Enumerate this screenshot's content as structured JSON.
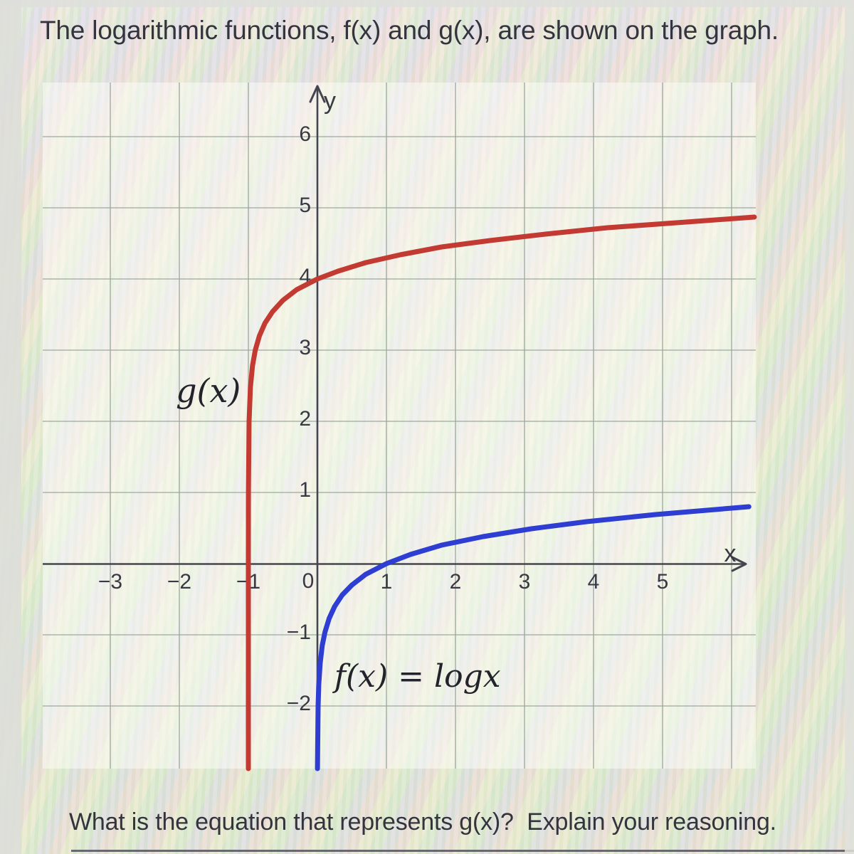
{
  "intro_text": "The logarithmic functions, f(x) and g(x), are shown on the graph.",
  "question_text": "What is the equation that represents g(x)?  Explain your reasoning.",
  "colors": {
    "curve_g": "#c23a31",
    "curve_f": "#2e3ed2",
    "axis": "#45454f",
    "grid": "#9aa69b",
    "text": "#34343f"
  },
  "chart_data": {
    "type": "line",
    "title": "",
    "xlabel": "x",
    "ylabel": "y",
    "origin_label": "0",
    "grid": true,
    "legend": "labels drawn beside curves",
    "xlim": [
      -3.98,
      6.35
    ],
    "ylim": [
      -2.88,
      6.76
    ],
    "x_gridlines": [
      -3,
      -2,
      -1,
      1,
      2,
      3,
      4,
      5,
      6
    ],
    "y_gridlines": [
      -2,
      -1,
      1,
      2,
      3,
      4,
      5,
      6
    ],
    "x_ticks": [
      -3,
      -2,
      -1,
      1,
      2,
      3,
      4,
      5
    ],
    "y_ticks": [
      6,
      5,
      4,
      3,
      2,
      1,
      -1,
      -2
    ],
    "series": [
      {
        "name": "g(x)",
        "color": "#c23a31",
        "asymptote_x": -1,
        "y_intercept": 4,
        "points": [
          [
            -1.0,
            -2.88
          ],
          [
            -0.9999,
            0.0
          ],
          [
            -0.999,
            1.0
          ],
          [
            -0.99,
            2.0
          ],
          [
            -0.97,
            2.48
          ],
          [
            -0.94,
            2.78
          ],
          [
            -0.9,
            3.0
          ],
          [
            -0.84,
            3.2
          ],
          [
            -0.76,
            3.38
          ],
          [
            -0.65,
            3.54
          ],
          [
            -0.5,
            3.7
          ],
          [
            -0.3,
            3.85
          ],
          [
            0,
            4
          ],
          [
            0.3,
            4.11
          ],
          [
            0.7,
            4.23
          ],
          [
            1.2,
            4.34
          ],
          [
            1.8,
            4.45
          ],
          [
            2.5,
            4.54
          ],
          [
            3.3,
            4.63
          ],
          [
            4.2,
            4.72
          ],
          [
            5.2,
            4.79
          ],
          [
            6.33,
            4.87
          ]
        ]
      },
      {
        "name": "f(x) = logx",
        "equation": "f(x) = logx",
        "color": "#2e3ed2",
        "asymptote_x": 0,
        "x_intercept": 1,
        "points": [
          [
            0.0013,
            -2.88
          ],
          [
            0.01,
            -2.0
          ],
          [
            0.02,
            -1.7
          ],
          [
            0.04,
            -1.4
          ],
          [
            0.07,
            -1.15
          ],
          [
            0.11,
            -0.96
          ],
          [
            0.17,
            -0.77
          ],
          [
            0.25,
            -0.6
          ],
          [
            0.36,
            -0.44
          ],
          [
            0.5,
            -0.3
          ],
          [
            0.7,
            -0.15
          ],
          [
            1,
            0
          ],
          [
            1.35,
            0.13
          ],
          [
            1.8,
            0.26
          ],
          [
            2.4,
            0.38
          ],
          [
            3.1,
            0.49
          ],
          [
            3.9,
            0.59
          ],
          [
            4.9,
            0.69
          ],
          [
            6.25,
            0.8
          ]
        ]
      }
    ],
    "annotations": [
      {
        "text": "g(x)",
        "x": -1.58,
        "y": 2.42,
        "class": "curve-label-g"
      },
      {
        "text": "f(x) = logx",
        "x": 1.45,
        "y": -1.58,
        "class": "curve-label-f"
      }
    ]
  }
}
